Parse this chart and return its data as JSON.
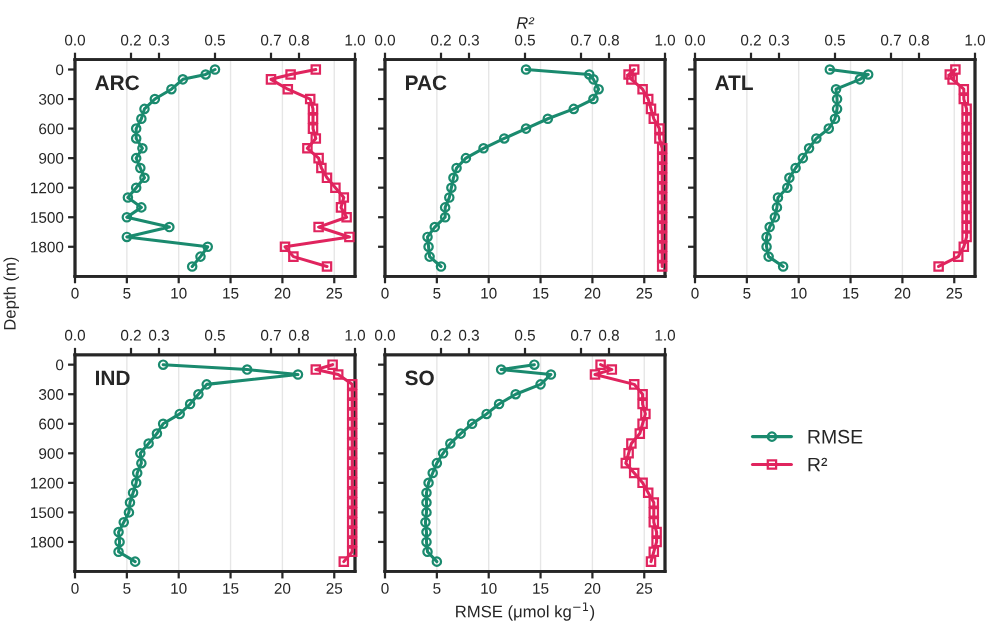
{
  "chart_data": [
    {
      "type": "line",
      "title": "ARC",
      "ylabel": "Depth (m)",
      "x": [
        0,
        50,
        100,
        200,
        300,
        400,
        500,
        600,
        700,
        800,
        900,
        1000,
        1100,
        1200,
        1300,
        1400,
        1500,
        1600,
        1700,
        1800,
        1900,
        2000
      ],
      "orientation": "horizontal",
      "xlim": [
        0,
        27
      ],
      "xticks": [
        0,
        5,
        10,
        15,
        20,
        25
      ],
      "x2lim": [
        0,
        1
      ],
      "x2ticks": [
        {
          "value": 0,
          "label": "0.0"
        },
        {
          "value": 0.2,
          "label": "0.2"
        },
        {
          "value": 0.3,
          "label": "0.3"
        },
        {
          "value": 0.5,
          "label": "0.5"
        },
        {
          "value": 0.7,
          "label": "0.7"
        },
        {
          "value": 0.8,
          "label": "0.8"
        },
        {
          "value": 1,
          "label": "1.0"
        }
      ],
      "ylim": [
        2100,
        -100
      ],
      "yticks": [
        0,
        300,
        600,
        900,
        1200,
        1500,
        1800
      ],
      "grid": "x",
      "series": [
        {
          "color": "#1a8a6e",
          "marker": "circle",
          "values": [
            13.5,
            12.6,
            10.4,
            9.3,
            7.7,
            6.7,
            6.4,
            5.9,
            5.9,
            6.5,
            5.9,
            6.3,
            6.7,
            5.9,
            5.1,
            6.4,
            5.0,
            9.1,
            5.0,
            12.8,
            12.1,
            11.3
          ]
        },
        {
          "color": "#e0245e",
          "marker": "square",
          "axis": "x2",
          "values": [
            0.86,
            0.77,
            0.7,
            0.76,
            0.84,
            0.85,
            0.85,
            0.85,
            0.86,
            0.83,
            0.87,
            0.88,
            0.9,
            0.93,
            0.96,
            0.95,
            0.97,
            0.87,
            0.98,
            0.75,
            0.78,
            0.9
          ]
        }
      ]
    },
    {
      "type": "line",
      "title": "PAC",
      "x2label": "R²",
      "x": [
        0,
        50,
        100,
        200,
        300,
        400,
        500,
        600,
        700,
        800,
        900,
        1000,
        1100,
        1200,
        1300,
        1400,
        1500,
        1600,
        1700,
        1800,
        1900,
        2000
      ],
      "orientation": "horizontal",
      "xlim": [
        0,
        27
      ],
      "xticks": [
        0,
        5,
        10,
        15,
        20,
        25
      ],
      "x2lim": [
        0,
        1
      ],
      "x2ticks": [
        {
          "value": 0,
          "label": "0.0"
        },
        {
          "value": 0.2,
          "label": "0.2"
        },
        {
          "value": 0.3,
          "label": "0.3"
        },
        {
          "value": 0.5,
          "label": "0.5"
        },
        {
          "value": 0.7,
          "label": "0.7"
        },
        {
          "value": 0.8,
          "label": "0.8"
        },
        {
          "value": 1,
          "label": "1.0"
        }
      ],
      "ylim": [
        2100,
        -100
      ],
      "yticks": [
        0,
        300,
        600,
        900,
        1200,
        1500,
        1800
      ],
      "grid": "x",
      "tick_labels": "x",
      "series": [
        {
          "color": "#1a8a6e",
          "marker": "circle",
          "values": [
            13.6,
            19.7,
            20.1,
            20.6,
            20.1,
            18.2,
            15.7,
            13.6,
            11.5,
            9.5,
            7.8,
            6.9,
            6.6,
            6.4,
            6.2,
            5.8,
            5.8,
            4.8,
            4.1,
            4.2,
            4.3,
            5.4
          ]
        },
        {
          "color": "#e0245e",
          "marker": "square",
          "axis": "x2",
          "values": [
            0.89,
            0.87,
            0.88,
            0.92,
            0.94,
            0.95,
            0.96,
            0.98,
            0.98,
            0.99,
            0.99,
            0.99,
            0.99,
            0.99,
            0.99,
            0.99,
            0.99,
            0.99,
            0.99,
            0.99,
            0.99,
            0.99
          ]
        }
      ]
    },
    {
      "type": "line",
      "title": "ATL",
      "x": [
        0,
        50,
        100,
        200,
        300,
        400,
        500,
        600,
        700,
        800,
        900,
        1000,
        1100,
        1200,
        1300,
        1400,
        1500,
        1600,
        1700,
        1800,
        1900,
        2000
      ],
      "orientation": "horizontal",
      "xlim": [
        0,
        27
      ],
      "xticks": [
        0,
        5,
        10,
        15,
        20,
        25
      ],
      "x2lim": [
        0,
        1
      ],
      "x2ticks": [
        {
          "value": 0,
          "label": "0.0"
        },
        {
          "value": 0.2,
          "label": "0.2"
        },
        {
          "value": 0.3,
          "label": "0.3"
        },
        {
          "value": 0.5,
          "label": "0.5"
        },
        {
          "value": 0.7,
          "label": "0.7"
        },
        {
          "value": 0.8,
          "label": "0.8"
        },
        {
          "value": 1,
          "label": "1.0"
        }
      ],
      "ylim": [
        2100,
        -100
      ],
      "yticks": [
        0,
        300,
        600,
        900,
        1200,
        1500,
        1800
      ],
      "grid": "x",
      "tick_labels": "x",
      "series": [
        {
          "color": "#1a8a6e",
          "marker": "circle",
          "values": [
            13.0,
            16.7,
            15.9,
            13.6,
            13.7,
            13.7,
            13.5,
            12.9,
            11.7,
            11.0,
            10.4,
            9.7,
            9.1,
            8.9,
            8.0,
            7.9,
            7.7,
            7.2,
            6.9,
            6.9,
            7.1,
            8.5
          ]
        },
        {
          "color": "#e0245e",
          "marker": "square",
          "axis": "x2",
          "values": [
            0.93,
            0.91,
            0.92,
            0.96,
            0.96,
            0.97,
            0.97,
            0.97,
            0.97,
            0.97,
            0.97,
            0.97,
            0.97,
            0.97,
            0.97,
            0.97,
            0.97,
            0.97,
            0.97,
            0.96,
            0.94,
            0.87
          ]
        }
      ]
    },
    {
      "type": "line",
      "title": "IND",
      "x": [
        0,
        50,
        100,
        200,
        300,
        400,
        500,
        600,
        700,
        800,
        900,
        1000,
        1100,
        1200,
        1300,
        1400,
        1500,
        1600,
        1700,
        1800,
        1900,
        2000
      ],
      "orientation": "horizontal",
      "xlim": [
        0,
        27
      ],
      "xticks": [
        0,
        5,
        10,
        15,
        20,
        25
      ],
      "x2lim": [
        0,
        1
      ],
      "x2ticks": [
        {
          "value": 0,
          "label": "0.0"
        },
        {
          "value": 0.2,
          "label": "0.2"
        },
        {
          "value": 0.3,
          "label": "0.3"
        },
        {
          "value": 0.5,
          "label": "0.5"
        },
        {
          "value": 0.7,
          "label": "0.7"
        },
        {
          "value": 0.8,
          "label": "0.8"
        },
        {
          "value": 1,
          "label": "1.0"
        }
      ],
      "ylim": [
        2100,
        -100
      ],
      "yticks": [
        0,
        300,
        600,
        900,
        1200,
        1500,
        1800
      ],
      "grid": "x",
      "series": [
        {
          "color": "#1a8a6e",
          "marker": "circle",
          "values": [
            8.5,
            16.6,
            21.5,
            12.7,
            11.9,
            11.1,
            10.1,
            8.5,
            7.9,
            7.1,
            6.3,
            6.4,
            6.0,
            5.9,
            5.6,
            5.3,
            5.2,
            4.7,
            4.2,
            4.3,
            4.2,
            5.8
          ]
        },
        {
          "color": "#e0245e",
          "marker": "square",
          "axis": "x2",
          "values": [
            0.92,
            0.86,
            0.94,
            0.99,
            0.99,
            0.99,
            0.99,
            0.99,
            0.99,
            0.99,
            0.99,
            0.99,
            0.99,
            0.99,
            0.99,
            0.99,
            0.99,
            0.99,
            0.99,
            0.99,
            0.99,
            0.96
          ]
        }
      ]
    },
    {
      "type": "line",
      "title": "SO",
      "xlabel": "RMSE (μmol kg$^{−1}$)",
      "x": [
        0,
        50,
        100,
        200,
        300,
        400,
        500,
        600,
        700,
        800,
        900,
        1000,
        1100,
        1200,
        1300,
        1400,
        1500,
        1600,
        1700,
        1800,
        1900,
        2000
      ],
      "orientation": "horizontal",
      "xlim": [
        0,
        27
      ],
      "xticks": [
        0,
        5,
        10,
        15,
        20,
        25
      ],
      "x2lim": [
        0,
        1
      ],
      "x2ticks": [
        {
          "value": 0,
          "label": "0.0"
        },
        {
          "value": 0.2,
          "label": "0.2"
        },
        {
          "value": 0.3,
          "label": "0.3"
        },
        {
          "value": 0.5,
          "label": "0.5"
        },
        {
          "value": 0.7,
          "label": "0.7"
        },
        {
          "value": 0.8,
          "label": "0.8"
        },
        {
          "value": 1,
          "label": "1.0"
        }
      ],
      "ylim": [
        2100,
        -100
      ],
      "yticks": [
        0,
        300,
        600,
        900,
        1200,
        1500,
        1800
      ],
      "grid": "x",
      "tick_labels": "x",
      "legend": "right",
      "series": [
        {
          "name": "RMSE",
          "color": "#1a8a6e",
          "marker": "circle",
          "values": [
            14.4,
            11.2,
            16.0,
            15.0,
            12.6,
            11.0,
            9.8,
            8.4,
            7.3,
            6.3,
            5.6,
            5.0,
            4.6,
            4.2,
            4.0,
            4.0,
            4.0,
            3.9,
            4.0,
            4.0,
            4.1,
            5.0
          ]
        },
        {
          "name": "R²",
          "color": "#e0245e",
          "marker": "square",
          "axis": "x2",
          "values": [
            0.77,
            0.81,
            0.75,
            0.89,
            0.92,
            0.92,
            0.93,
            0.92,
            0.91,
            0.88,
            0.87,
            0.86,
            0.89,
            0.92,
            0.94,
            0.96,
            0.96,
            0.96,
            0.97,
            0.97,
            0.96,
            0.95
          ]
        }
      ]
    }
  ]
}
